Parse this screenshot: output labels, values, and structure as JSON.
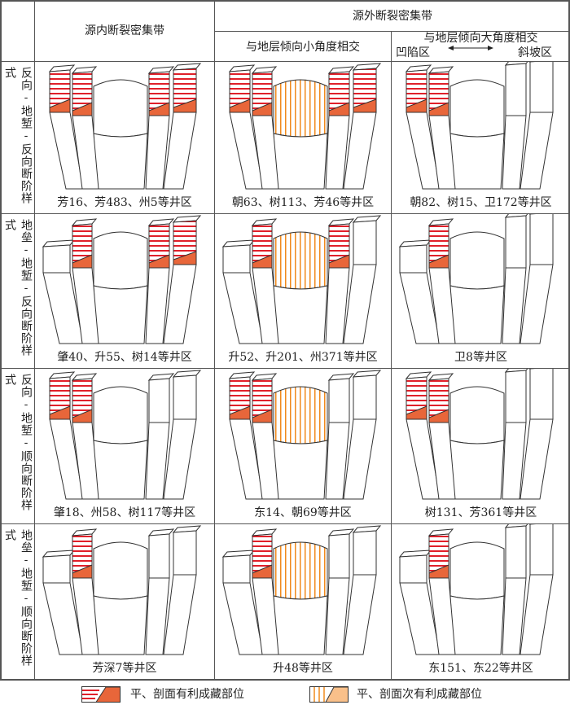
{
  "header": {
    "col1": "源内断裂密集带",
    "outer": "源外断裂密集带",
    "col2": "与地层倾向小角度相交",
    "col3": "与地层倾向大角度相交",
    "col3_left": "凹陷区",
    "col3_right": "斜坡区"
  },
  "rows": [
    {
      "label": "反向-地堑-反向断阶样式",
      "cells": [
        "芳16、芳483、州5等井区",
        "朝63、树113、芳46等井区",
        "朝82、树15、卫172等井区"
      ]
    },
    {
      "label": "地垒-地堑-反向断阶样式",
      "cells": [
        "肇40、升55、树14等井区",
        "升52、升201、州371等井区",
        "卫8等井区"
      ]
    },
    {
      "label": "反向-地堑-顺向断阶样式",
      "cells": [
        "肇18、州58、树117等井区",
        "东14、朝69等井区",
        "树131、芳361等井区"
      ]
    },
    {
      "label": "地垒-地堑-顺向断阶样式",
      "cells": [
        "芳深7等井区",
        "升48等井区",
        "东151、东22等井区"
      ]
    }
  ],
  "legend": [
    {
      "label": "平、剖面有利成藏部位",
      "color": "#e8663a",
      "stripe": "#e0202a"
    },
    {
      "label": "平、剖面次有利成藏部位",
      "color": "#f9c08a",
      "stripe": "#f08a1c"
    }
  ]
}
